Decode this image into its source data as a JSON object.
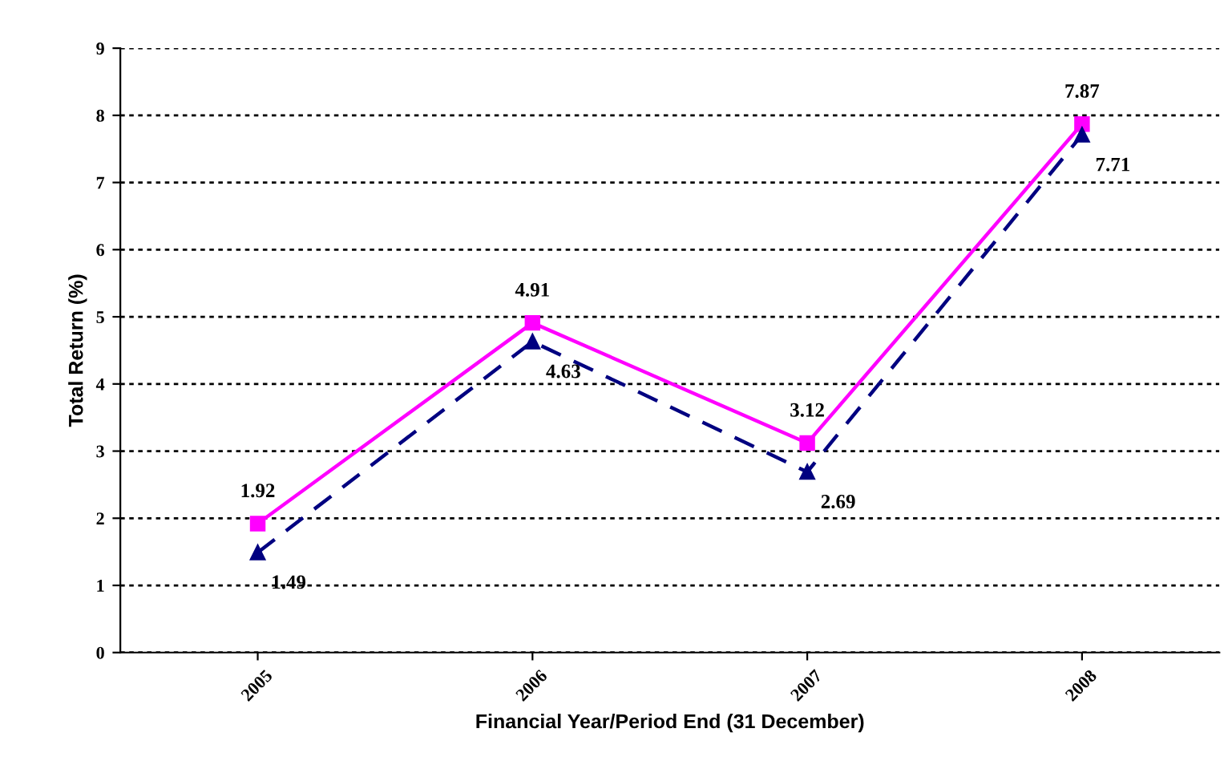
{
  "chart_data": {
    "type": "line",
    "xlabel": "Financial Year/Period End (31 December)",
    "ylabel": "Total Return (%)",
    "categories": [
      "2005",
      "2006",
      "2007",
      "2008"
    ],
    "series": [
      {
        "color": "#ff00ff",
        "values": [
          1.92,
          4.91,
          3.12,
          7.87
        ],
        "marker": "square",
        "line_style": "solid"
      },
      {
        "color": "#000080",
        "values": [
          1.49,
          4.63,
          2.69,
          7.71
        ],
        "marker": "triangle",
        "line_style": "dashed"
      }
    ],
    "ylim": [
      0,
      9
    ],
    "yticks": [
      0,
      1,
      2,
      3,
      4,
      5,
      6,
      7,
      8,
      9
    ],
    "grid": "y",
    "data_labels": true
  }
}
